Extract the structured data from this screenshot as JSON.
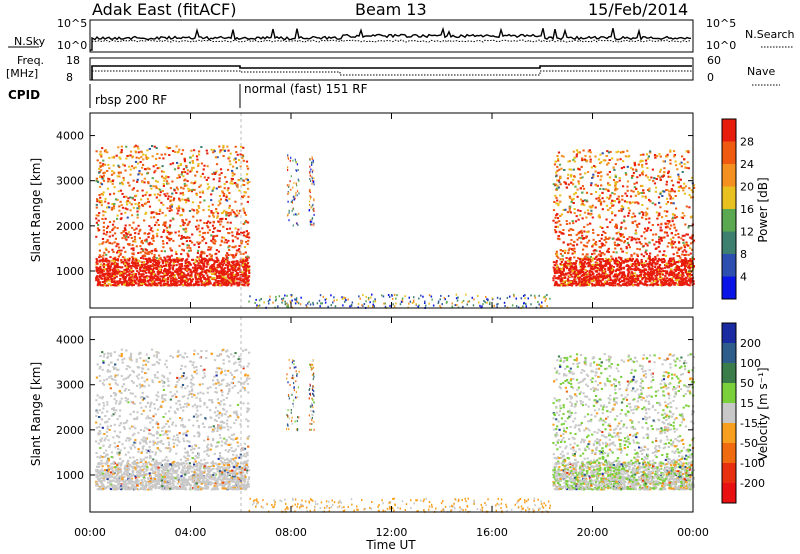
{
  "header": {
    "station": "Adak East (fitACF)",
    "beam": "Beam 13",
    "date": "15/Feb/2014"
  },
  "top_panels": {
    "nsky_label": "N.Sky",
    "nsky_ticks": [
      "10^5",
      "10^0"
    ],
    "nsearch_label": "N.Search",
    "nsearch_ticks": [
      "10^5",
      "10^0"
    ],
    "freq_label_1": "Freq.",
    "freq_label_2": "[MHz]",
    "freq_ticks": [
      "18",
      "8"
    ],
    "nave_label": "Nave",
    "nave_ticks": [
      "60",
      "0"
    ],
    "cpid_label": "CPID",
    "cpid_segments": [
      "rbsp 200 RF",
      "normal (fast) 151 RF"
    ]
  },
  "chart_data": [
    {
      "type": "heatmap",
      "title": "Power",
      "ylabel": "Slant Range [km]",
      "xlabel": "",
      "ylim": [
        180,
        4500
      ],
      "yticks": [
        "1000",
        "2000",
        "3000",
        "4000"
      ],
      "colorbar": {
        "label": "Power [dB]",
        "ticks": [
          "4",
          "8",
          "12",
          "16",
          "20",
          "24",
          "28"
        ],
        "colors": [
          "#0a14e6",
          "#2d4fb0",
          "#3d8070",
          "#5aa850",
          "#e8c020",
          "#f39020",
          "#f05a10",
          "#e81c0c"
        ]
      },
      "regions": [
        {
          "t0": 0.2,
          "t1": 6.3,
          "r0": 700,
          "r1": 3800,
          "dominant": "red/orange"
        },
        {
          "t0": 18.4,
          "t1": 24.0,
          "r0": 700,
          "r1": 3700,
          "dominant": "red/orange"
        }
      ]
    },
    {
      "type": "heatmap",
      "title": "Velocity",
      "ylabel": "Slant Range [km]",
      "xlabel": "Time UT",
      "ylim": [
        180,
        4500
      ],
      "yticks": [
        "1000",
        "2000",
        "3000",
        "4000"
      ],
      "xticks": [
        "00:00",
        "04:00",
        "08:00",
        "12:00",
        "16:00",
        "20:00",
        "00:00"
      ],
      "colorbar": {
        "label": "Velocity [m s⁻¹]",
        "ticks": [
          "200",
          "100",
          "50",
          "15",
          "-15",
          "-50",
          "-100",
          "-200"
        ],
        "colors": [
          "#1a2aa0",
          "#2e5d8c",
          "#3a7d4a",
          "#7ad03a",
          "#c8c8c8",
          "#f7a020",
          "#f06a10",
          "#e83010",
          "#e81010"
        ]
      },
      "regions": [
        {
          "t0": 0.2,
          "t1": 6.3,
          "r0": 700,
          "r1": 3800,
          "dominant": "gray"
        },
        {
          "t0": 18.4,
          "t1": 24.0,
          "r0": 700,
          "r1": 3700,
          "dominant": "gray/green"
        }
      ]
    }
  ],
  "colors": {
    "plot_border": "#000000",
    "gray_scatter": "#c8c8c8",
    "divider": "#bbbbbb"
  }
}
